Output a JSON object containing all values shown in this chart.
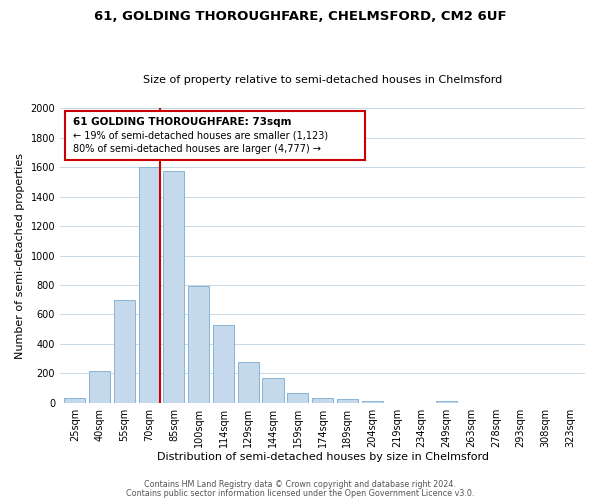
{
  "title_line1": "61, GOLDING THOROUGHFARE, CHELMSFORD, CM2 6UF",
  "title_line2": "Size of property relative to semi-detached houses in Chelmsford",
  "xlabel": "Distribution of semi-detached houses by size in Chelmsford",
  "ylabel": "Number of semi-detached properties",
  "bar_labels": [
    "25sqm",
    "40sqm",
    "55sqm",
    "70sqm",
    "85sqm",
    "100sqm",
    "114sqm",
    "129sqm",
    "144sqm",
    "159sqm",
    "174sqm",
    "189sqm",
    "204sqm",
    "219sqm",
    "234sqm",
    "249sqm",
    "263sqm",
    "278sqm",
    "293sqm",
    "308sqm",
    "323sqm"
  ],
  "bar_values": [
    35,
    215,
    700,
    1600,
    1575,
    790,
    530,
    275,
    165,
    65,
    30,
    22,
    14,
    0,
    0,
    12,
    0,
    0,
    0,
    0,
    0
  ],
  "bar_color": "#c5d9ed",
  "bar_edge_color": "#8ab4d4",
  "vline_color": "#cc0000",
  "vline_x_index": 3,
  "box_edge_color": "#cc0000",
  "ylim": [
    0,
    2000
  ],
  "yticks": [
    0,
    200,
    400,
    600,
    800,
    1000,
    1200,
    1400,
    1600,
    1800,
    2000
  ],
  "ann_line1": "61 GOLDING THOROUGHFARE: 73sqm",
  "ann_line2": "← 19% of semi-detached houses are smaller (1,123)",
  "ann_line3": "80% of semi-detached houses are larger (4,777) →",
  "footer_line1": "Contains HM Land Registry data © Crown copyright and database right 2024.",
  "footer_line2": "Contains public sector information licensed under the Open Government Licence v3.0.",
  "bg_color": "#ffffff",
  "grid_color": "#c8d8e8",
  "title1_fontsize": 9.5,
  "title2_fontsize": 8.0,
  "tick_fontsize": 7.0,
  "ylabel_fontsize": 8.0,
  "xlabel_fontsize": 8.0,
  "footer_fontsize": 5.8
}
